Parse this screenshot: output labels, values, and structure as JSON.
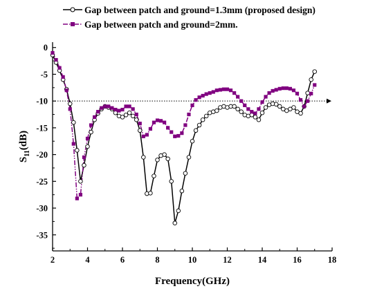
{
  "chart_data": {
    "type": "line",
    "xlabel": "Frequency(GHz)",
    "ylabel": "S11(dB)",
    "ylabel_main": "S",
    "ylabel_sub": "11",
    "ylabel_unit": "(dB)",
    "xlim": [
      2,
      18
    ],
    "ylim": [
      -38,
      1
    ],
    "xticks": [
      2,
      4,
      6,
      8,
      10,
      12,
      14,
      16,
      18
    ],
    "yticks": [
      0,
      -5,
      -10,
      -15,
      -20,
      -25,
      -30,
      -35
    ],
    "reference_line": {
      "y": -10,
      "style": "dotted",
      "arrow": true
    },
    "grid": false,
    "legend_position": "top-left",
    "colors": {
      "series1": "#000000",
      "series2": "#800080"
    },
    "series": [
      {
        "name": "Gap between patch and ground=1.3mm (proposed design)",
        "color": "#000000",
        "line": "solid",
        "marker": "open-circle",
        "points": [
          [
            2.0,
            -1.4
          ],
          [
            2.2,
            -2.8
          ],
          [
            2.4,
            -4.3
          ],
          [
            2.6,
            -6.0
          ],
          [
            2.8,
            -7.8
          ],
          [
            3.0,
            -10.5
          ],
          [
            3.2,
            -14.0
          ],
          [
            3.4,
            -19.2
          ],
          [
            3.6,
            -25.0
          ],
          [
            3.8,
            -22.0
          ],
          [
            4.0,
            -18.5
          ],
          [
            4.2,
            -15.8
          ],
          [
            4.4,
            -13.5
          ],
          [
            4.6,
            -12.3
          ],
          [
            4.8,
            -11.5
          ],
          [
            5.0,
            -11.0
          ],
          [
            5.2,
            -11.2
          ],
          [
            5.4,
            -11.5
          ],
          [
            5.6,
            -12.2
          ],
          [
            5.8,
            -12.8
          ],
          [
            6.0,
            -13.0
          ],
          [
            6.2,
            -12.6
          ],
          [
            6.4,
            -12.2
          ],
          [
            6.6,
            -12.8
          ],
          [
            6.8,
            -13.5
          ],
          [
            7.0,
            -15.5
          ],
          [
            7.2,
            -20.5
          ],
          [
            7.4,
            -27.3
          ],
          [
            7.6,
            -27.2
          ],
          [
            7.8,
            -24.0
          ],
          [
            8.0,
            -21.0
          ],
          [
            8.2,
            -20.2
          ],
          [
            8.4,
            -20.0
          ],
          [
            8.6,
            -20.8
          ],
          [
            8.8,
            -25.0
          ],
          [
            9.0,
            -32.8
          ],
          [
            9.2,
            -30.5
          ],
          [
            9.4,
            -26.8
          ],
          [
            9.6,
            -23.5
          ],
          [
            9.8,
            -20.5
          ],
          [
            10.0,
            -17.5
          ],
          [
            10.2,
            -15.5
          ],
          [
            10.4,
            -14.5
          ],
          [
            10.6,
            -13.5
          ],
          [
            10.8,
            -12.8
          ],
          [
            11.0,
            -12.2
          ],
          [
            11.2,
            -12.0
          ],
          [
            11.4,
            -11.8
          ],
          [
            11.6,
            -11.2
          ],
          [
            11.8,
            -11.0
          ],
          [
            12.0,
            -11.2
          ],
          [
            12.2,
            -11.0
          ],
          [
            12.4,
            -11.0
          ],
          [
            12.6,
            -11.5
          ],
          [
            12.8,
            -12.0
          ],
          [
            13.0,
            -12.6
          ],
          [
            13.2,
            -12.8
          ],
          [
            13.4,
            -12.6
          ],
          [
            13.6,
            -13.0
          ],
          [
            13.8,
            -13.5
          ],
          [
            14.0,
            -12.2
          ],
          [
            14.2,
            -11.2
          ],
          [
            14.4,
            -10.7
          ],
          [
            14.6,
            -10.5
          ],
          [
            14.8,
            -10.6
          ],
          [
            15.0,
            -11.0
          ],
          [
            15.2,
            -11.5
          ],
          [
            15.4,
            -11.8
          ],
          [
            15.6,
            -11.5
          ],
          [
            15.8,
            -11.2
          ],
          [
            16.0,
            -12.0
          ],
          [
            16.2,
            -12.3
          ],
          [
            16.4,
            -11.0
          ],
          [
            16.6,
            -8.5
          ],
          [
            16.8,
            -6.0
          ],
          [
            17.0,
            -4.5
          ]
        ]
      },
      {
        "name": "Gap between patch and ground=2mm.",
        "color": "#800080",
        "line": "dash-dot-dot",
        "marker": "filled-square",
        "points": [
          [
            2.0,
            -1.0
          ],
          [
            2.2,
            -2.3
          ],
          [
            2.4,
            -3.8
          ],
          [
            2.6,
            -5.5
          ],
          [
            2.8,
            -8.0
          ],
          [
            3.0,
            -11.5
          ],
          [
            3.2,
            -18.0
          ],
          [
            3.4,
            -28.2
          ],
          [
            3.6,
            -27.5
          ],
          [
            3.8,
            -20.5
          ],
          [
            4.0,
            -17.0
          ],
          [
            4.2,
            -14.5
          ],
          [
            4.4,
            -13.0
          ],
          [
            4.6,
            -12.0
          ],
          [
            4.8,
            -11.3
          ],
          [
            5.0,
            -11.0
          ],
          [
            5.2,
            -11.0
          ],
          [
            5.4,
            -11.3
          ],
          [
            5.6,
            -11.6
          ],
          [
            5.8,
            -11.8
          ],
          [
            6.0,
            -11.6
          ],
          [
            6.2,
            -11.0
          ],
          [
            6.4,
            -11.0
          ],
          [
            6.6,
            -11.5
          ],
          [
            6.8,
            -12.5
          ],
          [
            7.0,
            -14.2
          ],
          [
            7.2,
            -16.6
          ],
          [
            7.4,
            -16.3
          ],
          [
            7.6,
            -15.2
          ],
          [
            7.8,
            -14.0
          ],
          [
            8.0,
            -13.6
          ],
          [
            8.2,
            -13.7
          ],
          [
            8.4,
            -14.0
          ],
          [
            8.6,
            -15.0
          ],
          [
            8.8,
            -15.8
          ],
          [
            9.0,
            -16.6
          ],
          [
            9.2,
            -16.5
          ],
          [
            9.4,
            -16.0
          ],
          [
            9.6,
            -14.5
          ],
          [
            9.8,
            -12.5
          ],
          [
            10.0,
            -10.8
          ],
          [
            10.2,
            -9.8
          ],
          [
            10.4,
            -9.3
          ],
          [
            10.6,
            -9.0
          ],
          [
            10.8,
            -8.7
          ],
          [
            11.0,
            -8.5
          ],
          [
            11.2,
            -8.3
          ],
          [
            11.4,
            -8.0
          ],
          [
            11.6,
            -7.9
          ],
          [
            11.8,
            -7.8
          ],
          [
            12.0,
            -7.8
          ],
          [
            12.2,
            -8.0
          ],
          [
            12.4,
            -8.5
          ],
          [
            12.6,
            -9.2
          ],
          [
            12.8,
            -10.0
          ],
          [
            13.0,
            -10.8
          ],
          [
            13.2,
            -11.5
          ],
          [
            13.4,
            -12.0
          ],
          [
            13.6,
            -12.3
          ],
          [
            13.8,
            -11.5
          ],
          [
            14.0,
            -10.2
          ],
          [
            14.2,
            -9.2
          ],
          [
            14.4,
            -8.5
          ],
          [
            14.6,
            -8.1
          ],
          [
            14.8,
            -7.9
          ],
          [
            15.0,
            -7.7
          ],
          [
            15.2,
            -7.6
          ],
          [
            15.4,
            -7.6
          ],
          [
            15.6,
            -7.7
          ],
          [
            15.8,
            -8.0
          ],
          [
            16.0,
            -8.6
          ],
          [
            16.2,
            -9.8
          ],
          [
            16.4,
            -11.0
          ],
          [
            16.6,
            -10.0
          ],
          [
            16.8,
            -8.6
          ],
          [
            17.0,
            -7.0
          ]
        ]
      }
    ]
  }
}
